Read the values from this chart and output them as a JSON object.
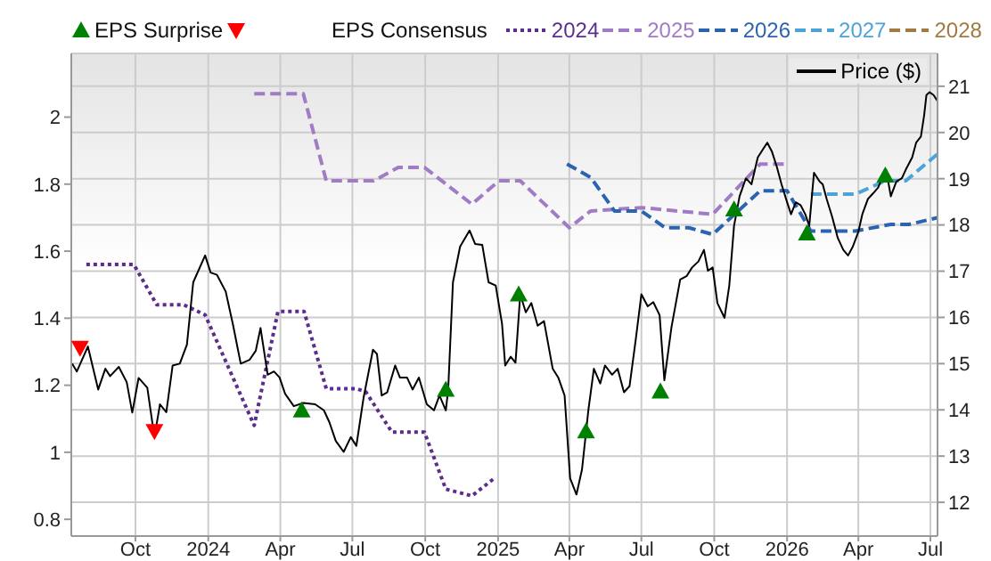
{
  "chart_data": {
    "type": "line",
    "legend_title": "EPS Consensus",
    "legend": "top",
    "grid": true,
    "xlim": [
      "2023-07-12",
      "2026-07-10"
    ],
    "xticks": [
      {
        "value": "2023-10-01",
        "label": "Oct"
      },
      {
        "value": "2024-01-01",
        "label": "2024"
      },
      {
        "value": "2024-04-01",
        "label": "Apr"
      },
      {
        "value": "2024-07-01",
        "label": "Jul"
      },
      {
        "value": "2024-10-01",
        "label": "Oct"
      },
      {
        "value": "2025-01-01",
        "label": "2025"
      },
      {
        "value": "2025-04-01",
        "label": "Apr"
      },
      {
        "value": "2025-07-01",
        "label": "Jul"
      },
      {
        "value": "2025-10-01",
        "label": "Oct"
      },
      {
        "value": "2026-01-01",
        "label": "2026"
      },
      {
        "value": "2026-04-01",
        "label": "Apr"
      },
      {
        "value": "2026-07-01",
        "label": "Jul"
      }
    ],
    "ylim": [
      0.75,
      2.19
    ],
    "yticks": [
      0.8,
      1,
      1.2,
      1.4,
      1.6,
      1.8,
      2
    ],
    "y2lim": [
      11.27,
      21.71
    ],
    "y2ticks": [
      12,
      13,
      14,
      15,
      16,
      17,
      18,
      19,
      20,
      21
    ],
    "series": [
      {
        "name": "EPS Surprise",
        "type": "scatter",
        "marker": "triangle",
        "axis": "y2",
        "color": "#008000",
        "x": [
          "2024-04-28",
          "2024-10-27",
          "2025-01-27",
          "2025-04-22",
          "2025-07-25",
          "2025-10-26",
          "2026-01-26",
          "2026-05-05"
        ],
        "values": [
          13.99,
          14.44,
          16.5,
          13.54,
          14.4,
          18.34,
          17.82,
          19.07
        ]
      },
      {
        "type": "scatter",
        "axis": "y2",
        "color": "#ff0000",
        "x": [
          "2023-07-23",
          "2023-10-25"
        ],
        "values": [
          15.34,
          13.54
        ]
      },
      {
        "name": "2024",
        "line_style": "dotted",
        "color": "#5b2d8e",
        "x": [
          "2023-07-31",
          "2023-09-29",
          "2023-10-28",
          "2023-12-01",
          "2023-12-28",
          "2024-02-28",
          "2024-03-29",
          "2024-05-01",
          "2024-05-29",
          "2024-07-06",
          "2024-07-18",
          "2024-08-20",
          "2024-09-30",
          "2024-10-27",
          "2024-11-29",
          "2024-12-26"
        ],
        "values": [
          1.56,
          1.56,
          1.44,
          1.44,
          1.41,
          1.08,
          1.42,
          1.42,
          1.19,
          1.19,
          1.18,
          1.06,
          1.06,
          0.89,
          0.87,
          0.92
        ]
      },
      {
        "name": "2025",
        "line_style": "dashed",
        "color": "#a07cc5",
        "x": [
          "2024-02-28",
          "2024-04-30",
          "2024-05-29",
          "2024-07-28",
          "2024-08-28",
          "2024-09-30",
          "2024-11-29",
          "2025-01-02",
          "2025-01-29",
          "2025-04-01",
          "2025-04-28",
          "2025-07-01",
          "2025-09-29",
          "2025-11-28",
          "2026-01-01"
        ],
        "values": [
          2.07,
          2.07,
          1.81,
          1.81,
          1.85,
          1.85,
          1.74,
          1.81,
          1.81,
          1.67,
          1.72,
          1.73,
          1.71,
          1.86,
          1.86
        ]
      },
      {
        "name": "2026",
        "line_style": "dashed",
        "color": "#2a64b0",
        "x": [
          "2025-03-29",
          "2025-04-28",
          "2025-05-28",
          "2025-07-01",
          "2025-07-31",
          "2025-08-30",
          "2025-09-29",
          "2025-11-28",
          "2026-01-01",
          "2026-01-31",
          "2026-03-28",
          "2026-05-12",
          "2026-06-04",
          "2026-07-10"
        ],
        "values": [
          1.86,
          1.82,
          1.72,
          1.72,
          1.67,
          1.67,
          1.65,
          1.78,
          1.78,
          1.66,
          1.66,
          1.68,
          1.68,
          1.7
        ]
      },
      {
        "name": "2027",
        "line_style": "dashed",
        "color": "#4aa3d9",
        "x": [
          "2026-01-31",
          "2026-03-28",
          "2026-05-05",
          "2026-05-31",
          "2026-07-10"
        ],
        "values": [
          1.77,
          1.77,
          1.81,
          1.81,
          1.89
        ]
      },
      {
        "name": "2028",
        "line_style": "dashed",
        "color": "#a07a40"
      },
      {
        "name": "Price ($)",
        "line_style": "solid",
        "axis": "y2",
        "color": "#000000",
        "x": [
          "2023-07-13",
          "2023-07-19",
          "2023-08-02",
          "2023-08-15",
          "2023-08-24",
          "2023-08-30",
          "2023-09-10",
          "2023-09-20",
          "2023-09-27",
          "2023-10-05",
          "2023-10-16",
          "2023-10-25",
          "2023-11-01",
          "2023-11-09",
          "2023-11-17",
          "2023-11-26",
          "2023-12-05",
          "2023-12-13",
          "2023-12-28",
          "2024-01-04",
          "2024-01-12",
          "2024-01-23",
          "2024-02-01",
          "2024-02-11",
          "2024-02-22",
          "2024-03-01",
          "2024-03-07",
          "2024-03-16",
          "2024-03-24",
          "2024-03-31",
          "2024-04-07",
          "2024-04-18",
          "2024-04-30",
          "2024-05-15",
          "2024-05-26",
          "2024-06-02",
          "2024-06-10",
          "2024-06-20",
          "2024-06-29",
          "2024-07-06",
          "2024-07-15",
          "2024-07-27",
          "2024-08-01",
          "2024-08-07",
          "2024-08-14",
          "2024-08-24",
          "2024-08-30",
          "2024-09-08",
          "2024-09-15",
          "2024-09-23",
          "2024-10-03",
          "2024-10-12",
          "2024-10-19",
          "2024-10-27",
          "2024-10-30",
          "2024-11-05",
          "2024-11-14",
          "2024-11-26",
          "2024-12-03",
          "2024-12-12",
          "2024-12-20",
          "2024-12-29",
          "2025-01-06",
          "2025-01-10",
          "2025-01-17",
          "2025-01-23",
          "2025-01-29",
          "2025-02-05",
          "2025-02-12",
          "2025-02-20",
          "2025-02-28",
          "2025-03-11",
          "2025-03-18",
          "2025-03-26",
          "2025-04-02",
          "2025-04-10",
          "2025-04-17",
          "2025-04-25",
          "2025-05-02",
          "2025-05-10",
          "2025-05-16",
          "2025-05-25",
          "2025-06-01",
          "2025-06-09",
          "2025-06-16",
          "2025-06-24",
          "2025-07-01",
          "2025-07-09",
          "2025-07-16",
          "2025-07-24",
          "2025-07-30",
          "2025-08-08",
          "2025-08-19",
          "2025-08-27",
          "2025-09-03",
          "2025-09-11",
          "2025-09-18",
          "2025-09-23",
          "2025-09-29",
          "2025-10-05",
          "2025-10-14",
          "2025-10-20",
          "2025-10-26",
          "2025-11-02",
          "2025-11-10",
          "2025-11-17",
          "2025-11-25",
          "2025-12-02",
          "2025-12-07",
          "2025-12-13",
          "2025-12-19",
          "2025-12-25",
          "2026-01-01",
          "2026-01-06",
          "2026-01-12",
          "2026-01-18",
          "2026-01-24",
          "2026-01-29",
          "2026-02-04",
          "2026-02-11",
          "2026-02-15",
          "2026-02-20",
          "2026-02-27",
          "2026-03-06",
          "2026-03-13",
          "2026-03-19",
          "2026-03-25",
          "2026-04-01",
          "2026-04-06",
          "2026-04-13",
          "2026-04-20",
          "2026-04-26",
          "2026-05-01",
          "2026-05-06",
          "2026-05-12",
          "2026-05-19",
          "2026-05-26",
          "2026-05-31",
          "2026-06-08",
          "2026-06-13",
          "2026-06-19",
          "2026-06-23",
          "2026-06-26",
          "2026-06-30",
          "2026-07-05",
          "2026-07-10"
        ],
        "values": [
          15.0,
          14.83,
          15.37,
          14.44,
          14.89,
          14.73,
          14.93,
          14.6,
          13.94,
          14.69,
          14.48,
          13.41,
          14.12,
          13.95,
          14.96,
          15.0,
          15.41,
          16.76,
          17.34,
          16.97,
          16.92,
          16.56,
          15.86,
          15.0,
          15.08,
          15.28,
          15.77,
          14.76,
          14.83,
          14.7,
          14.35,
          14.08,
          14.15,
          14.12,
          13.99,
          13.73,
          13.33,
          13.09,
          13.41,
          13.22,
          14.25,
          15.3,
          15.21,
          14.31,
          14.38,
          14.96,
          14.7,
          14.7,
          14.44,
          14.7,
          14.12,
          13.99,
          14.31,
          13.99,
          14.44,
          16.76,
          17.53,
          17.88,
          17.59,
          17.57,
          16.76,
          16.69,
          15.86,
          14.96,
          15.15,
          15.02,
          16.5,
          16.11,
          16.31,
          15.82,
          15.92,
          14.89,
          14.7,
          14.31,
          12.52,
          12.17,
          12.71,
          13.99,
          14.89,
          14.57,
          14.96,
          14.76,
          14.89,
          14.38,
          14.51,
          15.54,
          16.5,
          16.24,
          16.33,
          16.05,
          14.64,
          15.79,
          16.82,
          16.89,
          17.08,
          17.21,
          17.46,
          17.01,
          17.08,
          16.31,
          15.99,
          16.69,
          17.98,
          18.62,
          19.01,
          18.88,
          19.46,
          19.65,
          19.78,
          19.58,
          19.26,
          18.88,
          18.49,
          18.23,
          18.49,
          18.43,
          18.23,
          17.98,
          19.13,
          18.94,
          18.88,
          18.56,
          18.17,
          17.72,
          17.46,
          17.34,
          17.53,
          17.85,
          18.23,
          18.56,
          18.69,
          18.81,
          19.01,
          19.2,
          18.62,
          18.94,
          19.01,
          19.2,
          19.46,
          19.78,
          19.91,
          20.36,
          20.81,
          20.87,
          20.81,
          20.68
        ]
      }
    ]
  }
}
